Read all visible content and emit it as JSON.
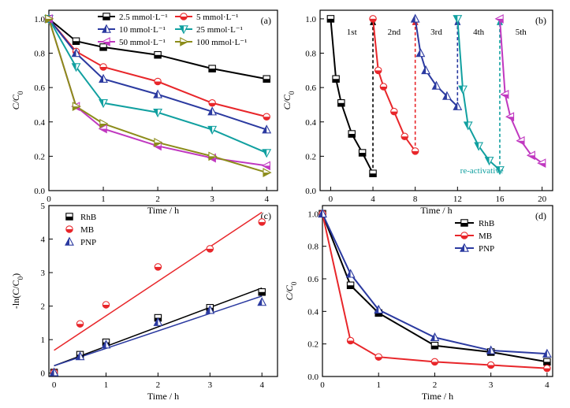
{
  "chart_data": [
    {
      "id": "a",
      "type": "line",
      "panel_label": "(a)",
      "xlabel": "Time / h",
      "ylabel_main": "C/C",
      "ylabel_sub": "0",
      "xlim": [
        0,
        4.2
      ],
      "ylim": [
        0,
        1.05
      ],
      "x_ticks": [
        0,
        1,
        2,
        3,
        4
      ],
      "y_ticks": [
        0.0,
        0.2,
        0.4,
        0.6,
        0.8,
        1.0
      ],
      "x_tick_labels": [
        "0",
        "1",
        "2",
        "3",
        "4"
      ],
      "y_tick_labels": [
        "0.0",
        "0.2",
        "0.4",
        "0.6",
        "0.8",
        "1.0"
      ],
      "legend_position": "top",
      "series": [
        {
          "name": "2.5 mmol·L⁻¹",
          "color": "#000000",
          "marker": "square-half",
          "x": [
            0,
            0.5,
            1,
            2,
            3,
            4
          ],
          "y": [
            1.0,
            0.87,
            0.835,
            0.79,
            0.71,
            0.65
          ]
        },
        {
          "name": "5 mmol·L⁻¹",
          "color": "#e8262a",
          "marker": "circle-half",
          "x": [
            0,
            0.5,
            1,
            2,
            3,
            4
          ],
          "y": [
            1.0,
            0.81,
            0.72,
            0.635,
            0.51,
            0.43
          ]
        },
        {
          "name": "10 mmol·L⁻¹",
          "color": "#2b3aa0",
          "marker": "triangle-up-half",
          "x": [
            0,
            0.5,
            1,
            2,
            3,
            4
          ],
          "y": [
            1.0,
            0.8,
            0.65,
            0.56,
            0.46,
            0.355
          ]
        },
        {
          "name": "25 mmol·L⁻¹",
          "color": "#11a0a0",
          "marker": "triangle-down-half",
          "x": [
            0,
            0.5,
            1,
            2,
            3,
            4
          ],
          "y": [
            1.0,
            0.72,
            0.51,
            0.455,
            0.355,
            0.22
          ]
        },
        {
          "name": "50 mmol·L⁻¹",
          "color": "#c038c0",
          "marker": "triangle-left-half",
          "x": [
            0,
            0.5,
            1,
            2,
            3,
            4
          ],
          "y": [
            1.0,
            0.49,
            0.36,
            0.26,
            0.19,
            0.145
          ]
        },
        {
          "name": "100 mmol·L⁻¹",
          "color": "#8c8c1a",
          "marker": "triangle-right-half",
          "x": [
            0,
            0.5,
            1,
            2,
            3,
            4
          ],
          "y": [
            1.0,
            0.49,
            0.39,
            0.28,
            0.2,
            0.105
          ]
        }
      ]
    },
    {
      "id": "b",
      "type": "line",
      "panel_label": "(b)",
      "xlabel": "Time / h",
      "ylabel_main": "C/C",
      "ylabel_sub": "0",
      "xlim": [
        -1,
        21
      ],
      "ylim": [
        0,
        1.05
      ],
      "x_ticks": [
        0,
        4,
        8,
        12,
        16,
        20
      ],
      "y_ticks": [
        0.0,
        0.2,
        0.4,
        0.6,
        0.8,
        1.0
      ],
      "x_tick_labels": [
        "0",
        "4",
        "8",
        "12",
        "16",
        "20"
      ],
      "y_tick_labels": [
        "0.0",
        "0.2",
        "0.4",
        "0.6",
        "0.8",
        "1.0"
      ],
      "run_labels": [
        {
          "text": "1st",
          "x": 2
        },
        {
          "text": "2nd",
          "x": 6
        },
        {
          "text": "3rd",
          "x": 10
        },
        {
          "text": "4th",
          "x": 14
        },
        {
          "text": "5th",
          "x": 18
        }
      ],
      "annotation": {
        "text": "re-activative",
        "x": 14.3,
        "y": 0.12,
        "color": "#11a0a0"
      },
      "reactivation_lines": [
        {
          "x0": 4,
          "y0": 0.1,
          "x1": 4,
          "y1": 1.0,
          "color": "#000000"
        },
        {
          "x0": 8,
          "y0": 0.23,
          "x1": 8,
          "y1": 1.0,
          "color": "#e8262a"
        },
        {
          "x0": 12,
          "y0": 0.49,
          "x1": 12,
          "y1": 1.0,
          "color": "#2b3aa0"
        },
        {
          "x0": 16,
          "y0": 0.12,
          "x1": 16,
          "y1": 1.0,
          "color": "#11a0a0"
        }
      ],
      "series": [
        {
          "name": "1st",
          "color": "#000000",
          "marker": "square-half",
          "x": [
            0,
            0.5,
            1,
            2,
            3,
            4
          ],
          "y": [
            1.0,
            0.65,
            0.51,
            0.33,
            0.22,
            0.1
          ]
        },
        {
          "name": "2nd",
          "color": "#e8262a",
          "marker": "circle-half",
          "x": [
            4,
            4.5,
            5,
            6,
            7,
            8
          ],
          "y": [
            1.0,
            0.7,
            0.605,
            0.46,
            0.315,
            0.23
          ]
        },
        {
          "name": "3rd",
          "color": "#2b3aa0",
          "marker": "triangle-up-half",
          "x": [
            8,
            8.5,
            9,
            10,
            11,
            12
          ],
          "y": [
            1.0,
            0.8,
            0.7,
            0.61,
            0.55,
            0.49
          ]
        },
        {
          "name": "4th",
          "color": "#11a0a0",
          "marker": "triangle-down-half",
          "x": [
            12,
            12.5,
            13,
            14,
            15,
            16
          ],
          "y": [
            1.0,
            0.59,
            0.38,
            0.26,
            0.175,
            0.12
          ]
        },
        {
          "name": "5th",
          "color": "#c038c0",
          "marker": "triangle-left-half",
          "x": [
            16,
            16.5,
            17,
            18,
            19,
            20
          ],
          "y": [
            1.0,
            0.56,
            0.43,
            0.29,
            0.205,
            0.16
          ]
        }
      ]
    },
    {
      "id": "c",
      "type": "scatter",
      "panel_label": "(c)",
      "xlabel": "Time / h",
      "ylabel_prefix": "-ln(C/C",
      "ylabel_sub": "0",
      "ylabel_suffix": ")",
      "xlim": [
        -0.1,
        4.3
      ],
      "ylim": [
        -0.1,
        5
      ],
      "x_ticks": [
        0,
        1,
        2,
        3,
        4
      ],
      "y_ticks": [
        0,
        1,
        2,
        3,
        4,
        5
      ],
      "x_tick_labels": [
        "0",
        "1",
        "2",
        "3",
        "4"
      ],
      "y_tick_labels": [
        "0",
        "1",
        "2",
        "3",
        "4",
        "5"
      ],
      "legend_position": "top-left",
      "series": [
        {
          "name": "RhB",
          "color": "#000000",
          "marker": "square-half",
          "x": [
            0,
            0.5,
            1,
            2,
            3,
            4
          ],
          "y": [
            0.02,
            0.55,
            0.92,
            1.65,
            1.95,
            2.42
          ],
          "fit": [
            0.22,
            0.58
          ]
        },
        {
          "name": "MB",
          "color": "#e8262a",
          "marker": "circle-half",
          "x": [
            0,
            0.5,
            1,
            2,
            3,
            4
          ],
          "y": [
            0.02,
            1.47,
            2.04,
            3.17,
            3.71,
            4.51
          ],
          "fit": [
            0.68,
            1.03
          ]
        },
        {
          "name": "PNP",
          "color": "#2b3aa0",
          "marker": "triangle-up-half",
          "x": [
            0,
            0.5,
            1,
            2,
            3,
            4
          ],
          "y": [
            0.02,
            0.5,
            0.85,
            1.52,
            1.88,
            2.12
          ],
          "fit": [
            0.22,
            0.52
          ]
        }
      ]
    },
    {
      "id": "d",
      "type": "line",
      "panel_label": "(d)",
      "xlabel": "Time / h",
      "ylabel_main": "C/C",
      "ylabel_sub": "0",
      "xlim": [
        0,
        4.1
      ],
      "ylim": [
        0,
        1.05
      ],
      "x_ticks": [
        0,
        1,
        2,
        3,
        4
      ],
      "y_ticks": [
        0.0,
        0.2,
        0.4,
        0.6,
        0.8,
        1.0
      ],
      "x_tick_labels": [
        "0",
        "1",
        "2",
        "3",
        "4"
      ],
      "y_tick_labels": [
        "0.0",
        "0.2",
        "0.4",
        "0.6",
        "0.8",
        "1.0"
      ],
      "legend_position": "top-right",
      "series": [
        {
          "name": "RhB",
          "color": "#000000",
          "marker": "square-half",
          "x": [
            0,
            0.5,
            1,
            2,
            3,
            4
          ],
          "y": [
            1.0,
            0.56,
            0.39,
            0.19,
            0.15,
            0.09
          ]
        },
        {
          "name": "MB",
          "color": "#e8262a",
          "marker": "circle-half",
          "x": [
            0,
            0.5,
            1,
            2,
            3,
            4
          ],
          "y": [
            1.0,
            0.22,
            0.12,
            0.09,
            0.07,
            0.05
          ]
        },
        {
          "name": "PNP",
          "color": "#2b3aa0",
          "marker": "triangle-up-half",
          "x": [
            0,
            0.5,
            1,
            2,
            3,
            4
          ],
          "y": [
            1.0,
            0.63,
            0.41,
            0.24,
            0.16,
            0.14
          ]
        }
      ]
    }
  ]
}
